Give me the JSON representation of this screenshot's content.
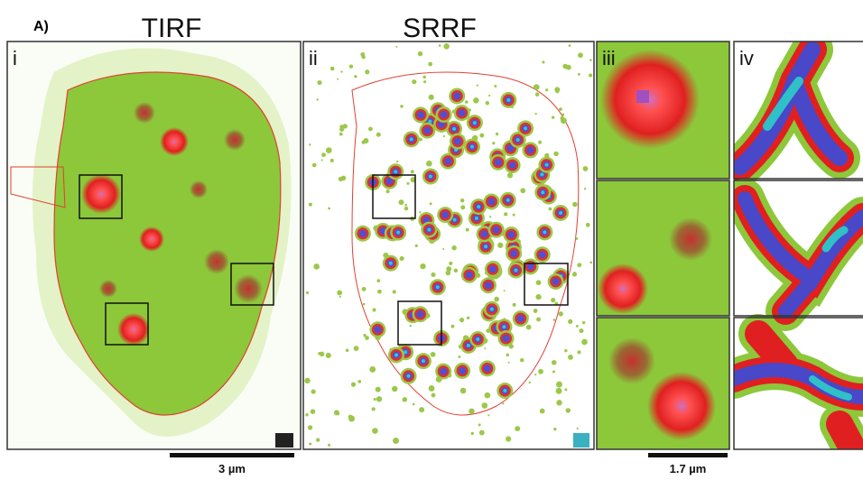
{
  "figure": {
    "label": "A)",
    "headers": [
      "TIRF",
      "SRRF"
    ],
    "panels": [
      "i",
      "ii",
      "iii",
      "iv"
    ],
    "scale_bars": [
      "3 µm",
      "1.7 µm"
    ]
  }
}
